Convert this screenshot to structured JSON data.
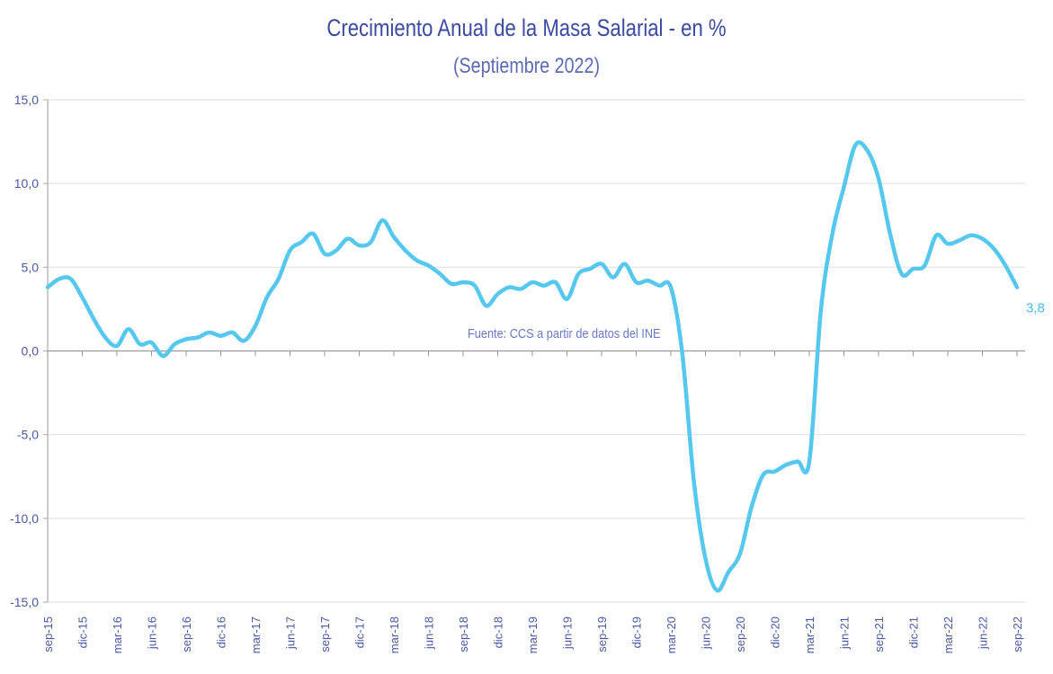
{
  "chart_data": {
    "type": "line",
    "title": "Crecimiento Anual de la Masa Salarial - en %",
    "subtitle": "(Septiembre 2022)",
    "source": "Fuente: CCS a partir de datos del INE",
    "xlabel": "",
    "ylabel": "",
    "ylim": [
      -15,
      15
    ],
    "yticks": [
      "15,0",
      "10,0",
      "5,0",
      "0,0",
      "-5,0",
      "-10,0",
      "-15,0"
    ],
    "ytick_values": [
      15,
      10,
      5,
      0,
      -5,
      -10,
      -15
    ],
    "xtick_labels": [
      "sep-15",
      "dic-15",
      "mar-16",
      "jun-16",
      "sep-16",
      "dic-16",
      "mar-17",
      "jun-17",
      "sep-17",
      "dic-17",
      "mar-18",
      "jun-18",
      "sep-18",
      "dic-18",
      "mar-19",
      "jun-19",
      "sep-19",
      "dic-19",
      "mar-20",
      "jun-20",
      "sep-20",
      "dic-20",
      "mar-21",
      "jun-21",
      "sep-21",
      "dic-21",
      "mar-22",
      "jun-22",
      "sep-22"
    ],
    "grid": true,
    "series": [
      {
        "name": "Masa salarial",
        "color": "#56c8f0",
        "values": [
          3.8,
          4.3,
          4.3,
          3.2,
          1.9,
          0.8,
          0.3,
          1.3,
          0.4,
          0.5,
          -0.3,
          0.4,
          0.7,
          0.8,
          1.1,
          0.9,
          1.1,
          0.6,
          1.5,
          3.2,
          4.3,
          6.0,
          6.5,
          7.0,
          5.8,
          6.0,
          6.7,
          6.3,
          6.5,
          7.8,
          6.8,
          6.0,
          5.4,
          5.1,
          4.6,
          4.0,
          4.1,
          3.9,
          2.7,
          3.4,
          3.8,
          3.7,
          4.1,
          3.9,
          4.1,
          3.1,
          4.6,
          4.9,
          5.2,
          4.4,
          5.2,
          4.1,
          4.2,
          3.9,
          3.8,
          -0.2,
          -7.8,
          -12.4,
          -14.3,
          -13.2,
          -12.1,
          -9.3,
          -7.4,
          -7.2,
          -6.8,
          -6.6,
          -6.6,
          2.4,
          7.0,
          9.8,
          12.3,
          12.0,
          10.3,
          7.0,
          4.6,
          4.9,
          5.1,
          6.9,
          6.4,
          6.6,
          6.9,
          6.7,
          6.1,
          5.1,
          3.8
        ]
      }
    ],
    "end_label": "3,8"
  }
}
